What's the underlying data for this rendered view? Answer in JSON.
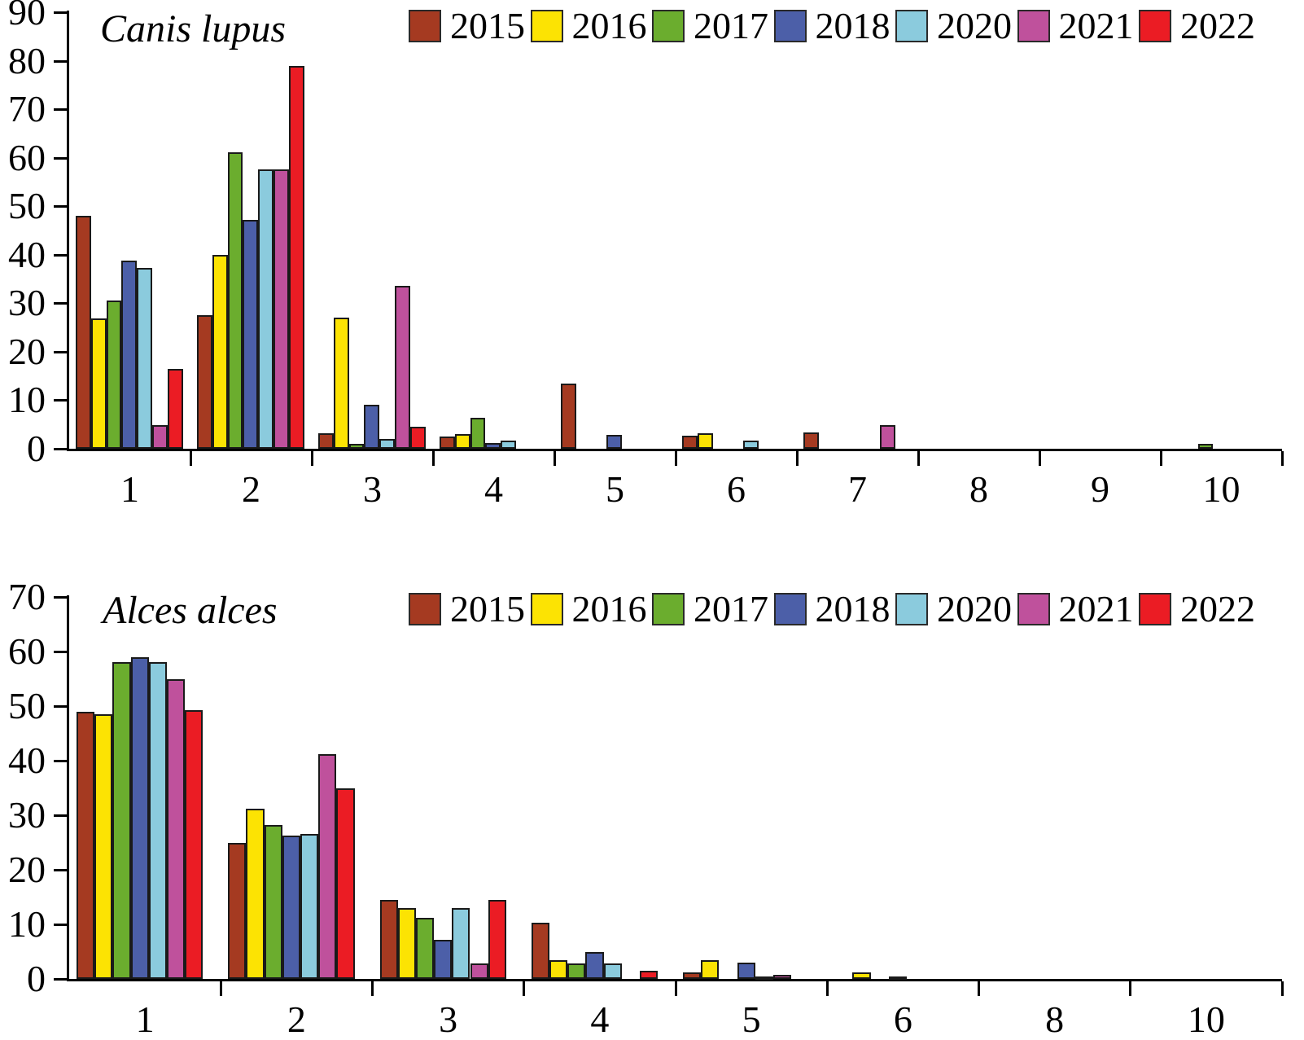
{
  "figure": {
    "charts": [
      {
        "title": "Canis lupus",
        "chart_data": {
          "type": "bar",
          "categories": [
            "1",
            "2",
            "3",
            "4",
            "5",
            "6",
            "7",
            "8",
            "9",
            "10"
          ],
          "xlabel": "",
          "ylabel": "",
          "ylim": [
            0,
            90
          ],
          "ytick_labels": [
            "0",
            "10",
            "20",
            "30",
            "40",
            "50",
            "60",
            "70",
            "80",
            "90"
          ],
          "grid": false,
          "legend_position": "top",
          "series": [
            {
              "name": "2015",
              "color": "#A53A21",
              "values": [
                48,
                27.5,
                3.2,
                2.6,
                13.5,
                2.7,
                3.3,
                0,
                0,
                0
              ]
            },
            {
              "name": "2016",
              "color": "#FCE303",
              "values": [
                26.8,
                40,
                27,
                3.1,
                0,
                3.2,
                0,
                0,
                0,
                0
              ]
            },
            {
              "name": "2017",
              "color": "#6BAD2E",
              "values": [
                30.5,
                61.2,
                1,
                6.3,
                0,
                0,
                0,
                0,
                0,
                1
              ]
            },
            {
              "name": "2018",
              "color": "#4C5FA8",
              "values": [
                38.8,
                47.2,
                9,
                1.2,
                2.9,
                0,
                0,
                0,
                0,
                0
              ]
            },
            {
              "name": "2020",
              "color": "#8BCBDD",
              "values": [
                37.3,
                57.6,
                2,
                1.6,
                0,
                1.7,
                0,
                0,
                0,
                0
              ]
            },
            {
              "name": "2021",
              "color": "#BF519C",
              "values": [
                4.8,
                57.6,
                33.5,
                0,
                0,
                0,
                4.8,
                0,
                0,
                0
              ]
            },
            {
              "name": "2022",
              "color": "#EB1C24",
              "values": [
                16.5,
                79,
                4.5,
                0,
                0,
                0,
                0,
                0,
                0,
                0
              ]
            }
          ]
        }
      },
      {
        "title": "Alces alces",
        "chart_data": {
          "type": "bar",
          "categories": [
            "1",
            "2",
            "3",
            "4",
            "5",
            "6",
            "8",
            "10"
          ],
          "xlabel": "",
          "ylabel": "",
          "ylim": [
            0,
            70
          ],
          "ytick_labels": [
            "0",
            "10",
            "20",
            "30",
            "40",
            "50",
            "60",
            "70"
          ],
          "grid": false,
          "legend_position": "top",
          "series": [
            {
              "name": "2015",
              "color": "#A53A21",
              "values": [
                49,
                25,
                14.5,
                10.3,
                1.2,
                0,
                0,
                0
              ]
            },
            {
              "name": "2016",
              "color": "#FCE303",
              "values": [
                48.5,
                31.2,
                13,
                3.4,
                3.4,
                1.2,
                0,
                0
              ]
            },
            {
              "name": "2017",
              "color": "#6BAD2E",
              "values": [
                58,
                28.2,
                11.2,
                2.8,
                0,
                0,
                0,
                0
              ]
            },
            {
              "name": "2018",
              "color": "#4C5FA8",
              "values": [
                59,
                26.2,
                7.2,
                5,
                3,
                0.5,
                0,
                0
              ]
            },
            {
              "name": "2020",
              "color": "#8BCBDD",
              "values": [
                58,
                26.6,
                13,
                2.8,
                0.5,
                0,
                0,
                0
              ]
            },
            {
              "name": "2021",
              "color": "#BF519C",
              "values": [
                55,
                41.2,
                2.8,
                0,
                0.8,
                0,
                0,
                0
              ]
            },
            {
              "name": "2022",
              "color": "#EB1C24",
              "values": [
                49.3,
                35,
                14.5,
                1.5,
                0,
                0,
                0,
                0
              ]
            }
          ]
        }
      }
    ]
  }
}
